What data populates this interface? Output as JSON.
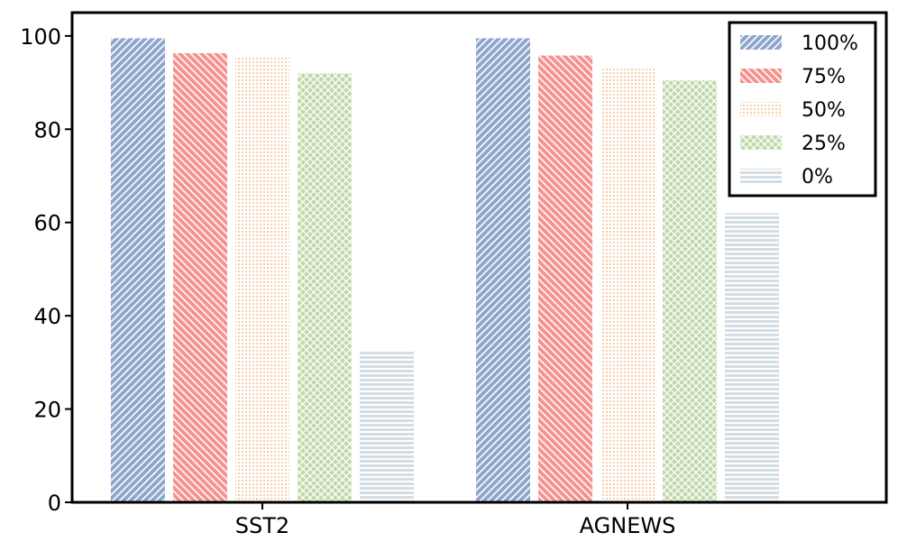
{
  "chart_data": {
    "type": "bar",
    "categories": [
      "SST2",
      "AGNEWS"
    ],
    "series": [
      {
        "name": "100%",
        "values": [
          99.5,
          99.5
        ],
        "color": "#8ea5cc",
        "pattern": "diag-right"
      },
      {
        "name": "75%",
        "values": [
          96.3,
          95.8
        ],
        "color": "#f4938f",
        "pattern": "diag-left"
      },
      {
        "name": "50%",
        "values": [
          95.5,
          93.2
        ],
        "color": "#f6cfa8",
        "pattern": "dots"
      },
      {
        "name": "25%",
        "values": [
          92.0,
          90.5
        ],
        "color": "#bfd9a8",
        "pattern": "cross"
      },
      {
        "name": "0%",
        "values": [
          32.3,
          62.0
        ],
        "color": "#d4dde3",
        "pattern": "horizontal"
      }
    ],
    "ylim": [
      0,
      105
    ],
    "yticks": [
      0,
      20,
      40,
      60,
      80,
      100
    ],
    "title": "",
    "xlabel": "",
    "ylabel": "",
    "grid": false,
    "legend_position": "top-right"
  }
}
